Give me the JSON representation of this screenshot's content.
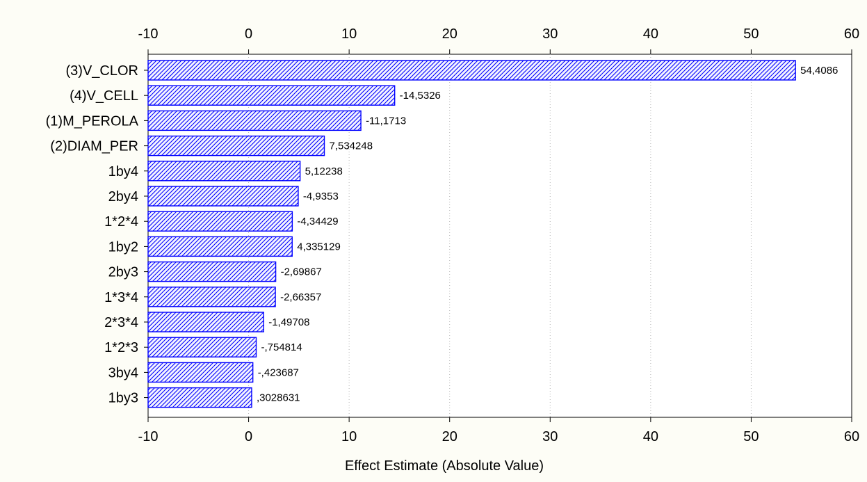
{
  "chart_data": {
    "type": "bar",
    "orientation": "horizontal",
    "title": "",
    "xlabel": "Effect Estimate (Absolute Value)",
    "ylabel": "",
    "xlim": [
      -10,
      60
    ],
    "xticks": [
      -10,
      0,
      10,
      20,
      30,
      40,
      50,
      60
    ],
    "xtick_labels": [
      "-10",
      "0",
      "10",
      "20",
      "30",
      "40",
      "50",
      "60"
    ],
    "ticks_on_top_and_bottom": true,
    "grid": "vertical dotted",
    "categories": [
      "(3)V_CLOR",
      "(4)V_CELL",
      "(1)M_PEROLA",
      "(2)DIAM_PER",
      "1by4",
      "2by4",
      "1*2*4",
      "1by2",
      "2by3",
      "1*3*4",
      "2*3*4",
      "1*2*3",
      "3by4",
      "1by3"
    ],
    "values": [
      54.4086,
      14.5326,
      11.1713,
      7.534248,
      5.12238,
      4.9353,
      4.34429,
      4.335129,
      2.69867,
      2.66357,
      1.49708,
      0.754814,
      0.423687,
      0.3028631
    ],
    "value_labels": [
      "54,4086",
      "-14,5326",
      "-11,1713",
      "7,534248",
      "5,12238",
      "-4,9353",
      "-4,34429",
      "4,335129",
      "-2,69867",
      "-2,66357",
      "-1,49708",
      "-,754814",
      "-,423687",
      ",3028631"
    ],
    "bar_color": "#0000ff",
    "bar_fill": "#f0f0ff",
    "bar_pattern": "diagonal hatch",
    "plot_background": "#ffffff",
    "page_background": "#fdfdf6"
  }
}
